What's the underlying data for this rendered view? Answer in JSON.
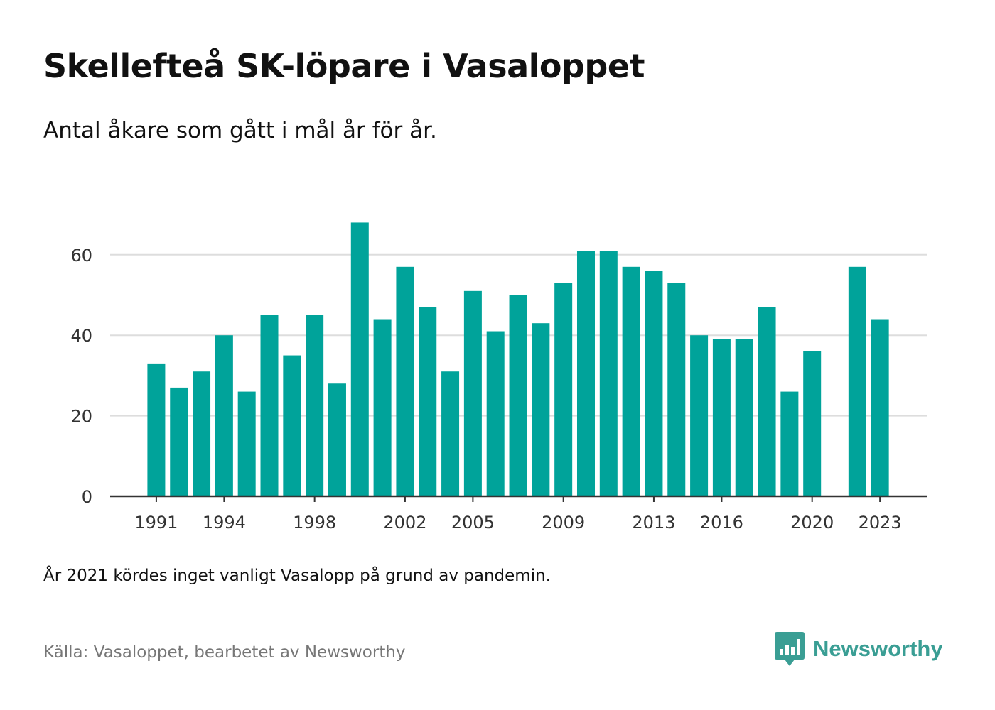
{
  "title": "Skellefteå SK-löpare i Vasaloppet",
  "subtitle": "Antal åkare som gått i mål år för år.",
  "note": "År 2021 kördes inget vanligt Vasalopp på grund av pandemin.",
  "source": "Källa: Vasaloppet, bearbetet av Newsworthy",
  "brand": {
    "name": "Newsworthy",
    "icon": "newsworthy-logo-icon",
    "color": "#3a9e94"
  },
  "colors": {
    "bar": "#00a39a",
    "grid": "#dddddd",
    "axis": "#333333",
    "tick_text": "#333333"
  },
  "chart_data": {
    "type": "bar",
    "categories": [
      "1991",
      "1992",
      "1993",
      "1994",
      "1995",
      "1996",
      "1997",
      "1998",
      "1999",
      "2000",
      "2001",
      "2002",
      "2003",
      "2004",
      "2005",
      "2006",
      "2007",
      "2008",
      "2009",
      "2010",
      "2011",
      "2012",
      "2013",
      "2014",
      "2015",
      "2016",
      "2017",
      "2018",
      "2019",
      "2020",
      "2021",
      "2022",
      "2023"
    ],
    "values": [
      33,
      27,
      31,
      40,
      26,
      45,
      35,
      45,
      28,
      68,
      44,
      57,
      47,
      31,
      51,
      41,
      50,
      43,
      53,
      61,
      61,
      57,
      56,
      53,
      40,
      39,
      39,
      47,
      26,
      36,
      null,
      57,
      44
    ],
    "x_tick_labels": [
      "1991",
      "1994",
      "1998",
      "2002",
      "2005",
      "2009",
      "2013",
      "2016",
      "2020",
      "2023"
    ],
    "y_ticks": [
      0,
      20,
      40,
      60
    ],
    "ylim": [
      0,
      70
    ],
    "grid": true,
    "legend": "none",
    "xlabel": "",
    "ylabel": ""
  }
}
